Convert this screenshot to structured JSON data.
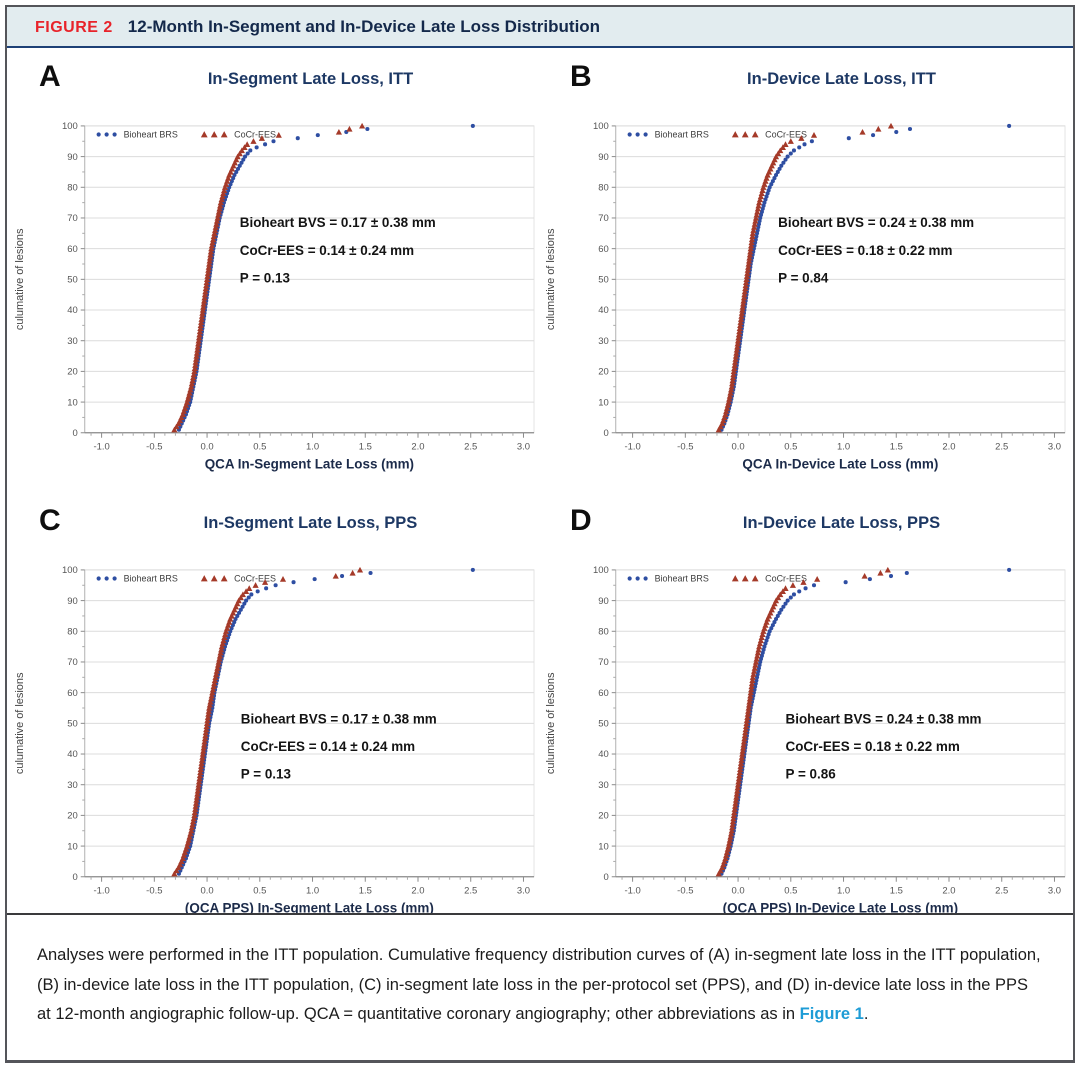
{
  "figure_header": {
    "label": "FIGURE 2",
    "title": "12-Month In-Segment and In-Device Late Loss Distribution"
  },
  "colors": {
    "accent_red": "#e8232a",
    "navy_title": "#1d3864",
    "header_bg": "#e2ecef",
    "rule_navy": "#1d4076",
    "bioheart_blue": "#2e4ea2",
    "cocr_red": "#a53a29",
    "grid": "#dcdcdc",
    "axis_text": "#555555",
    "xlabel_color": "#1c2b4a",
    "link_blue": "#1e9cd6"
  },
  "legend": {
    "series1": "Bioheart BRS",
    "series2": "CoCr-EES"
  },
  "axes": {
    "ylabel": "culumative of lesions",
    "yticks": [
      0,
      10,
      20,
      30,
      40,
      50,
      60,
      70,
      80,
      90,
      100
    ],
    "xticks": [
      -1.0,
      -0.5,
      0.0,
      0.5,
      1.0,
      1.5,
      2.0,
      2.5,
      3.0
    ],
    "xlim": [
      -1.16,
      3.1
    ],
    "ylim": [
      0,
      100
    ],
    "grid": "horizontal"
  },
  "chart_data": [
    {
      "letter": "A",
      "title": "In-Segment Late Loss, ITT",
      "type": "scatter",
      "xlabel": "QCA In-Segment Late Loss (mm)",
      "annotation": [
        "Bioheart BVS = 0.17 ± 0.38 mm",
        "CoCr-EES = 0.14 ± 0.24 mm",
        "P = 0.13"
      ],
      "annotation_pos": {
        "x": 0.31,
        "y": [
          67,
          58,
          49
        ]
      },
      "series": [
        {
          "name": "Bioheart BRS",
          "marker": "circle",
          "color_key": "bioheart_blue",
          "quantiles": [
            [
              0,
              -0.28
            ],
            [
              3,
              -0.24
            ],
            [
              6,
              -0.2
            ],
            [
              10,
              -0.16
            ],
            [
              15,
              -0.13
            ],
            [
              20,
              -0.1
            ],
            [
              25,
              -0.08
            ],
            [
              30,
              -0.06
            ],
            [
              35,
              -0.04
            ],
            [
              40,
              -0.02
            ],
            [
              45,
              0.0
            ],
            [
              50,
              0.02
            ],
            [
              55,
              0.04
            ],
            [
              60,
              0.06
            ],
            [
              65,
              0.09
            ],
            [
              70,
              0.12
            ],
            [
              75,
              0.16
            ],
            [
              80,
              0.21
            ],
            [
              84,
              0.26
            ],
            [
              87,
              0.31
            ],
            [
              90,
              0.36
            ],
            [
              92,
              0.41
            ],
            [
              93,
              0.47
            ],
            [
              94,
              0.55
            ],
            [
              95,
              0.63
            ],
            [
              96,
              0.86
            ],
            [
              97,
              1.05
            ],
            [
              98,
              1.32
            ],
            [
              99,
              1.52
            ],
            [
              100,
              2.52
            ]
          ]
        },
        {
          "name": "CoCr-EES",
          "marker": "triangle",
          "color_key": "cocr_red",
          "quantiles": [
            [
              0,
              -0.33
            ],
            [
              3,
              -0.27
            ],
            [
              6,
              -0.23
            ],
            [
              10,
              -0.19
            ],
            [
              15,
              -0.15
            ],
            [
              20,
              -0.12
            ],
            [
              25,
              -0.1
            ],
            [
              30,
              -0.08
            ],
            [
              35,
              -0.06
            ],
            [
              40,
              -0.04
            ],
            [
              45,
              -0.02
            ],
            [
              50,
              0.0
            ],
            [
              55,
              0.02
            ],
            [
              60,
              0.04
            ],
            [
              65,
              0.07
            ],
            [
              70,
              0.1
            ],
            [
              75,
              0.13
            ],
            [
              80,
              0.17
            ],
            [
              84,
              0.21
            ],
            [
              87,
              0.25
            ],
            [
              90,
              0.29
            ],
            [
              92,
              0.33
            ],
            [
              94,
              0.38
            ],
            [
              95,
              0.44
            ],
            [
              96,
              0.52
            ],
            [
              97,
              0.68
            ],
            [
              98,
              1.25
            ],
            [
              99,
              1.35
            ],
            [
              100,
              1.47
            ]
          ]
        }
      ]
    },
    {
      "letter": "B",
      "title": "In-Device Late Loss, ITT",
      "type": "scatter",
      "xlabel": "QCA In-Device Late Loss (mm)",
      "annotation": [
        "Bioheart BVS = 0.24 ± 0.38 mm",
        "CoCr-EES = 0.18 ± 0.22 mm",
        "P = 0.84"
      ],
      "annotation_pos": {
        "x": 0.38,
        "y": [
          67,
          58,
          49
        ]
      },
      "series": [
        {
          "name": "Bioheart BRS",
          "marker": "circle",
          "color_key": "bioheart_blue",
          "quantiles": [
            [
              0,
              -0.17
            ],
            [
              3,
              -0.13
            ],
            [
              6,
              -0.1
            ],
            [
              10,
              -0.07
            ],
            [
              15,
              -0.04
            ],
            [
              20,
              -0.02
            ],
            [
              25,
              0.0
            ],
            [
              30,
              0.02
            ],
            [
              35,
              0.04
            ],
            [
              40,
              0.06
            ],
            [
              45,
              0.08
            ],
            [
              50,
              0.1
            ],
            [
              55,
              0.12
            ],
            [
              60,
              0.15
            ],
            [
              65,
              0.18
            ],
            [
              70,
              0.21
            ],
            [
              75,
              0.25
            ],
            [
              80,
              0.3
            ],
            [
              84,
              0.36
            ],
            [
              87,
              0.41
            ],
            [
              90,
              0.47
            ],
            [
              92,
              0.53
            ],
            [
              93,
              0.58
            ],
            [
              94,
              0.63
            ],
            [
              95,
              0.7
            ],
            [
              96,
              1.05
            ],
            [
              97,
              1.28
            ],
            [
              98,
              1.5
            ],
            [
              99,
              1.63
            ],
            [
              100,
              2.57
            ]
          ]
        },
        {
          "name": "CoCr-EES",
          "marker": "triangle",
          "color_key": "cocr_red",
          "quantiles": [
            [
              0,
              -0.2
            ],
            [
              3,
              -0.15
            ],
            [
              6,
              -0.12
            ],
            [
              10,
              -0.09
            ],
            [
              15,
              -0.06
            ],
            [
              20,
              -0.04
            ],
            [
              25,
              -0.02
            ],
            [
              30,
              0.0
            ],
            [
              35,
              0.02
            ],
            [
              40,
              0.04
            ],
            [
              45,
              0.06
            ],
            [
              50,
              0.08
            ],
            [
              55,
              0.1
            ],
            [
              60,
              0.12
            ],
            [
              65,
              0.14
            ],
            [
              70,
              0.17
            ],
            [
              75,
              0.2
            ],
            [
              80,
              0.24
            ],
            [
              84,
              0.28
            ],
            [
              87,
              0.32
            ],
            [
              90,
              0.36
            ],
            [
              92,
              0.4
            ],
            [
              94,
              0.45
            ],
            [
              95,
              0.5
            ],
            [
              96,
              0.6
            ],
            [
              97,
              0.72
            ],
            [
              98,
              1.18
            ],
            [
              99,
              1.33
            ],
            [
              100,
              1.45
            ]
          ]
        }
      ]
    },
    {
      "letter": "C",
      "title": "In-Segment Late Loss, PPS",
      "type": "scatter",
      "xlabel": "(QCA PPS) In-Segment Late Loss (mm)",
      "annotation": [
        "Bioheart BVS = 0.17 ± 0.38 mm",
        "CoCr-EES = 0.14 ± 0.24 mm",
        "P = 0.13"
      ],
      "annotation_pos": {
        "x": 0.32,
        "y": [
          50,
          41,
          32
        ]
      },
      "series": [
        {
          "name": "Bioheart BRS",
          "marker": "circle",
          "color_key": "bioheart_blue",
          "quantiles": [
            [
              0,
              -0.28
            ],
            [
              3,
              -0.24
            ],
            [
              6,
              -0.2
            ],
            [
              10,
              -0.16
            ],
            [
              15,
              -0.13
            ],
            [
              20,
              -0.1
            ],
            [
              25,
              -0.08
            ],
            [
              30,
              -0.06
            ],
            [
              35,
              -0.04
            ],
            [
              40,
              -0.02
            ],
            [
              45,
              0.0
            ],
            [
              50,
              0.02
            ],
            [
              55,
              0.05
            ],
            [
              60,
              0.07
            ],
            [
              65,
              0.1
            ],
            [
              70,
              0.13
            ],
            [
              75,
              0.17
            ],
            [
              80,
              0.22
            ],
            [
              84,
              0.27
            ],
            [
              87,
              0.32
            ],
            [
              90,
              0.37
            ],
            [
              92,
              0.42
            ],
            [
              93,
              0.48
            ],
            [
              94,
              0.56
            ],
            [
              95,
              0.65
            ],
            [
              96,
              0.82
            ],
            [
              97,
              1.02
            ],
            [
              98,
              1.28
            ],
            [
              99,
              1.55
            ],
            [
              100,
              2.52
            ]
          ]
        },
        {
          "name": "CoCr-EES",
          "marker": "triangle",
          "color_key": "cocr_red",
          "quantiles": [
            [
              0,
              -0.33
            ],
            [
              3,
              -0.27
            ],
            [
              6,
              -0.23
            ],
            [
              10,
              -0.19
            ],
            [
              15,
              -0.15
            ],
            [
              20,
              -0.12
            ],
            [
              25,
              -0.1
            ],
            [
              30,
              -0.08
            ],
            [
              35,
              -0.06
            ],
            [
              40,
              -0.04
            ],
            [
              45,
              -0.02
            ],
            [
              50,
              0.0
            ],
            [
              55,
              0.02
            ],
            [
              60,
              0.05
            ],
            [
              65,
              0.08
            ],
            [
              70,
              0.11
            ],
            [
              75,
              0.14
            ],
            [
              80,
              0.18
            ],
            [
              84,
              0.22
            ],
            [
              87,
              0.26
            ],
            [
              90,
              0.3
            ],
            [
              92,
              0.34
            ],
            [
              94,
              0.4
            ],
            [
              95,
              0.46
            ],
            [
              96,
              0.55
            ],
            [
              97,
              0.72
            ],
            [
              98,
              1.22
            ],
            [
              99,
              1.38
            ],
            [
              100,
              1.45
            ]
          ]
        }
      ]
    },
    {
      "letter": "D",
      "title": "In-Device Late Loss, PPS",
      "type": "scatter",
      "xlabel": "(QCA PPS) In-Device Late Loss (mm)",
      "annotation": [
        "Bioheart BVS = 0.24 ± 0.38 mm",
        "CoCr-EES = 0.18 ± 0.22 mm",
        "P = 0.86"
      ],
      "annotation_pos": {
        "x": 0.45,
        "y": [
          50,
          41,
          32
        ]
      },
      "series": [
        {
          "name": "Bioheart BRS",
          "marker": "circle",
          "color_key": "bioheart_blue",
          "quantiles": [
            [
              0,
              -0.17
            ],
            [
              3,
              -0.13
            ],
            [
              6,
              -0.1
            ],
            [
              10,
              -0.07
            ],
            [
              15,
              -0.04
            ],
            [
              20,
              -0.02
            ],
            [
              25,
              0.0
            ],
            [
              30,
              0.02
            ],
            [
              35,
              0.04
            ],
            [
              40,
              0.06
            ],
            [
              45,
              0.08
            ],
            [
              50,
              0.1
            ],
            [
              55,
              0.12
            ],
            [
              60,
              0.15
            ],
            [
              65,
              0.18
            ],
            [
              70,
              0.21
            ],
            [
              75,
              0.25
            ],
            [
              80,
              0.3
            ],
            [
              84,
              0.36
            ],
            [
              87,
              0.41
            ],
            [
              90,
              0.47
            ],
            [
              92,
              0.53
            ],
            [
              93,
              0.58
            ],
            [
              94,
              0.64
            ],
            [
              95,
              0.72
            ],
            [
              96,
              1.02
            ],
            [
              97,
              1.25
            ],
            [
              98,
              1.45
            ],
            [
              99,
              1.6
            ],
            [
              100,
              2.57
            ]
          ]
        },
        {
          "name": "CoCr-EES",
          "marker": "triangle",
          "color_key": "cocr_red",
          "quantiles": [
            [
              0,
              -0.2
            ],
            [
              3,
              -0.15
            ],
            [
              6,
              -0.12
            ],
            [
              10,
              -0.09
            ],
            [
              15,
              -0.06
            ],
            [
              20,
              -0.04
            ],
            [
              25,
              -0.02
            ],
            [
              30,
              0.0
            ],
            [
              35,
              0.02
            ],
            [
              40,
              0.04
            ],
            [
              45,
              0.06
            ],
            [
              50,
              0.08
            ],
            [
              55,
              0.1
            ],
            [
              60,
              0.12
            ],
            [
              65,
              0.14
            ],
            [
              70,
              0.17
            ],
            [
              75,
              0.2
            ],
            [
              80,
              0.24
            ],
            [
              84,
              0.28
            ],
            [
              87,
              0.32
            ],
            [
              90,
              0.36
            ],
            [
              92,
              0.4
            ],
            [
              94,
              0.45
            ],
            [
              95,
              0.52
            ],
            [
              96,
              0.62
            ],
            [
              97,
              0.75
            ],
            [
              98,
              1.2
            ],
            [
              99,
              1.35
            ],
            [
              100,
              1.42
            ]
          ]
        }
      ]
    }
  ],
  "caption": {
    "text_before": "Analyses were performed in the ITT population. Cumulative frequency distribution curves of (A) in-segment late loss in the ITT population, (B) in-device late loss in the ITT population, (C) in-segment late loss in the per-protocol set (PPS), and (D) in-device late loss in the PPS at 12-month angiographic follow-up. QCA = quantitative coronary angiography; other abbreviations as in ",
    "link": "Figure 1",
    "text_after": "."
  }
}
